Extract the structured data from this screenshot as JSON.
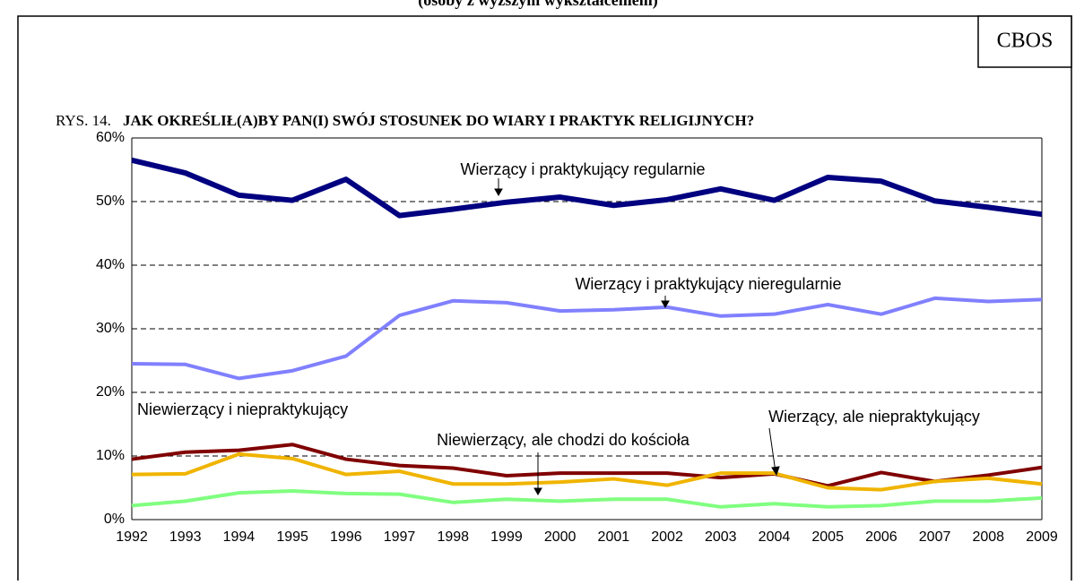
{
  "chart_data": {
    "type": "line",
    "subtitle": "(osoby z wyższym wykształceniem)",
    "source": "CBOS",
    "figure_label": "RYS. 14.",
    "title": "JAK OKREŚLIŁ(A)BY PAN(I) SWÓJ STOSUNEK DO WIARY I PRAKTYK RELIGIJNYCH?",
    "categories": [
      "1992",
      "1993",
      "1994",
      "1995",
      "1996",
      "1997",
      "1998",
      "1999",
      "2000",
      "2001",
      "2002",
      "2003",
      "2004",
      "2005",
      "2006",
      "2007",
      "2008",
      "2009"
    ],
    "series": [
      {
        "name": "Wierzący i praktykujący regularnie",
        "color": "#000080",
        "values": [
          56.5,
          54.5,
          51,
          50.2,
          53.5,
          47.8,
          48.8,
          49.9,
          50.7,
          49.4,
          50.3,
          52,
          50.2,
          53.8,
          53.2,
          50.1,
          49.1,
          48
        ]
      },
      {
        "name": "Wierzący i praktykujący nieregularnie",
        "color": "#8080ff",
        "values": [
          24.5,
          24.4,
          22.2,
          23.4,
          25.7,
          32.1,
          34.4,
          34.1,
          32.8,
          33,
          33.4,
          32,
          32.3,
          33.8,
          32.3,
          34.8,
          34.3,
          34.6
        ]
      },
      {
        "name": "Niewierzący i niepraktykujący",
        "color": "#800000",
        "values": [
          9.5,
          10.6,
          10.9,
          11.8,
          9.5,
          8.5,
          8.1,
          6.9,
          7.3,
          7.3,
          7.3,
          6.6,
          7.2,
          5.3,
          7.4,
          6,
          7,
          8.2
        ]
      },
      {
        "name": "Wierzący, ale niepraktykujący",
        "color": "#f0b400",
        "values": [
          7.1,
          7.2,
          10.3,
          9.6,
          7.1,
          7.6,
          5.6,
          5.6,
          5.9,
          6.4,
          5.4,
          7.3,
          7.3,
          5.0,
          4.7,
          6.0,
          6.5,
          5.6
        ]
      },
      {
        "name": "Niewierzący, ale chodzi do kościoła",
        "color": "#80ff80",
        "values": [
          2.2,
          2.9,
          4.2,
          4.5,
          4.1,
          4.0,
          2.7,
          3.2,
          2.9,
          3.2,
          3.2,
          2.0,
          2.5,
          2.0,
          2.2,
          2.9,
          2.9,
          3.4
        ]
      }
    ],
    "ylim": [
      0,
      60
    ],
    "yticks": [
      {
        "value": 0,
        "label": "0%"
      },
      {
        "value": 10,
        "label": "10%"
      },
      {
        "value": 20,
        "label": "20%"
      },
      {
        "value": 30,
        "label": "30%"
      },
      {
        "value": 40,
        "label": "40%"
      },
      {
        "value": 50,
        "label": "50%"
      },
      {
        "value": 60,
        "label": "60%"
      }
    ],
    "grid": true
  }
}
